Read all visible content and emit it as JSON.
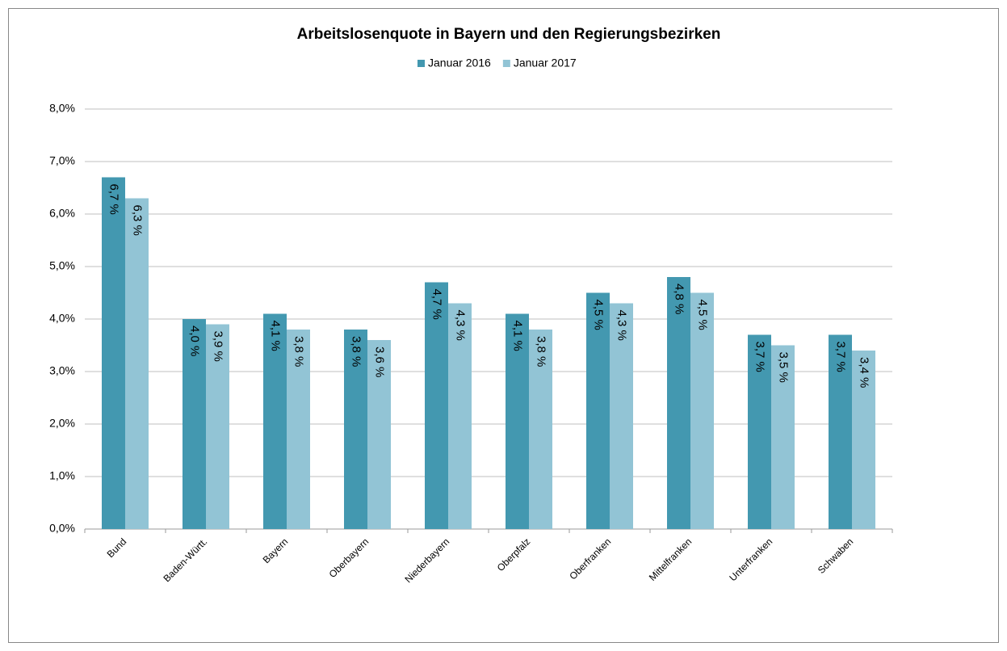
{
  "chart_data": {
    "type": "bar",
    "title": "Arbeitslosenquote in Bayern und den Regierungsbezirken",
    "categories": [
      "Bund",
      "Baden-Württ.",
      "Bayern",
      "Oberbayern",
      "Niederbayern",
      "Oberpfalz",
      "Oberfranken",
      "Mittelfranken",
      "Unterfranken",
      "Schwaben"
    ],
    "series": [
      {
        "name": "Januar 2016",
        "color": "#4398b0",
        "values": [
          6.7,
          4.0,
          4.1,
          3.8,
          4.7,
          4.1,
          4.5,
          4.8,
          3.7,
          3.7
        ],
        "value_labels": [
          "6,7 %",
          "4,0 %",
          "4,1 %",
          "3,8 %",
          "4,7 %",
          "4,1 %",
          "4,5 %",
          "4,8 %",
          "3,7 %",
          "3,7 %"
        ]
      },
      {
        "name": "Januar 2017",
        "color": "#92c4d5",
        "values": [
          6.3,
          3.9,
          3.8,
          3.6,
          4.3,
          3.8,
          4.3,
          4.5,
          3.5,
          3.4
        ],
        "value_labels": [
          "6,3 %",
          "3,9 %",
          "3,8 %",
          "3,6 %",
          "4,3 %",
          "3,8 %",
          "4,3 %",
          "4,5 %",
          "3,5 %",
          "3,4 %"
        ]
      }
    ],
    "ylim": [
      0,
      8
    ],
    "yticks": [
      {
        "value": 0,
        "label": "0,0%"
      },
      {
        "value": 1,
        "label": "1,0%"
      },
      {
        "value": 2,
        "label": "2,0%"
      },
      {
        "value": 3,
        "label": "3,0%"
      },
      {
        "value": 4,
        "label": "4,0%"
      },
      {
        "value": 5,
        "label": "5,0%"
      },
      {
        "value": 6,
        "label": "6,0%"
      },
      {
        "value": 7,
        "label": "7,0%"
      },
      {
        "value": 8,
        "label": "8,0%"
      }
    ],
    "grid": true,
    "legend": "top"
  }
}
